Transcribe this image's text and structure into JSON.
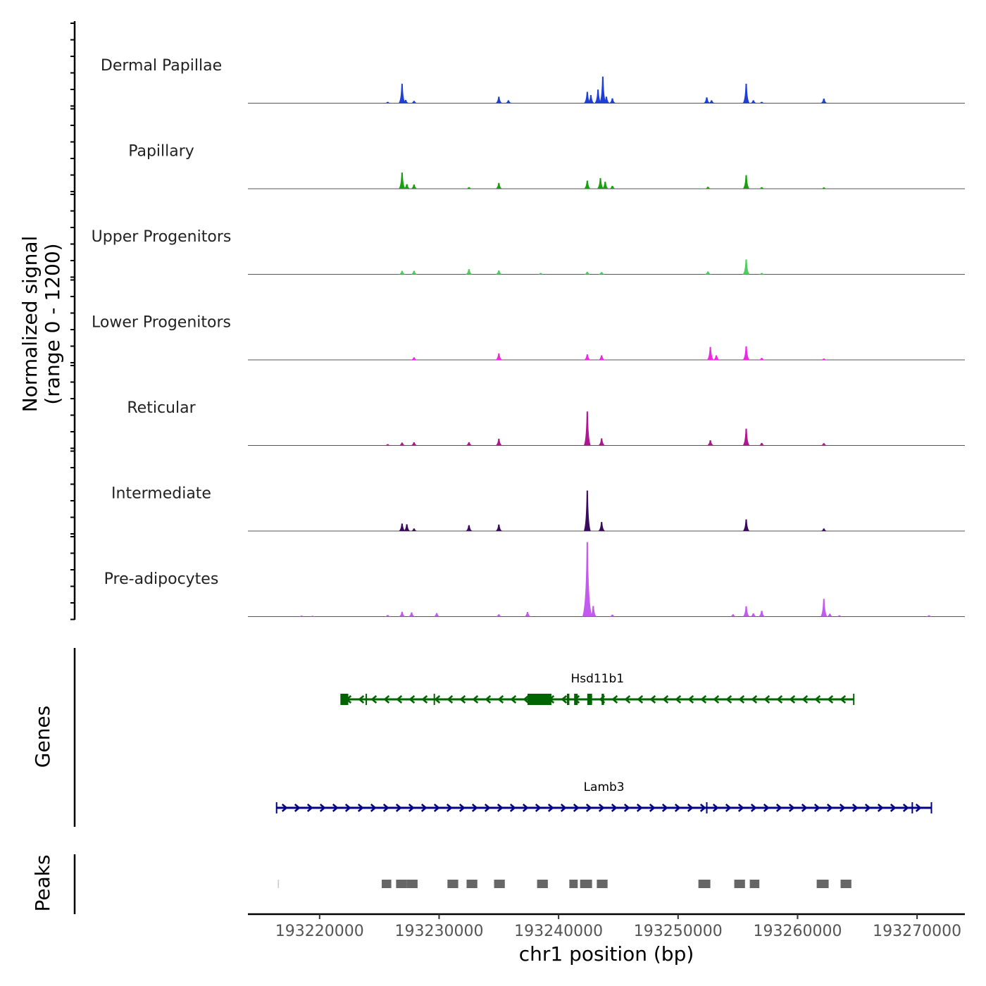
{
  "chart_data": {
    "type": "area",
    "title": "",
    "ylabel_line1": "Normalized signal",
    "ylabel_line2": "(range 0 - 1200)",
    "y_range": [
      0,
      1200
    ],
    "xlabel": "chr1 position (bp)",
    "xlim": [
      193214000,
      193274000
    ],
    "x_ticks": [
      193220000,
      193230000,
      193240000,
      193250000,
      193260000,
      193270000
    ],
    "x_tick_labels": [
      "193220000",
      "193230000",
      "193240000",
      "193250000",
      "193260000",
      "193270000"
    ],
    "tracks": [
      {
        "name": "Dermal Papillae",
        "color": "#1f3fd6",
        "peaks": [
          [
            193225700,
            40
          ],
          [
            193226900,
            600
          ],
          [
            193227200,
            100
          ],
          [
            193227900,
            70
          ],
          [
            193235000,
            200
          ],
          [
            193235800,
            90
          ],
          [
            193242400,
            350
          ],
          [
            193242700,
            250
          ],
          [
            193243300,
            420
          ],
          [
            193243700,
            820
          ],
          [
            193244000,
            200
          ],
          [
            193244500,
            150
          ],
          [
            193252400,
            180
          ],
          [
            193252800,
            90
          ],
          [
            193255700,
            600
          ],
          [
            193256300,
            90
          ],
          [
            193257000,
            40
          ],
          [
            193262200,
            140
          ]
        ]
      },
      {
        "name": "Papillary",
        "color": "#18a00f",
        "peaks": [
          [
            193226900,
            500
          ],
          [
            193227300,
            140
          ],
          [
            193227900,
            130
          ],
          [
            193232500,
            50
          ],
          [
            193235000,
            180
          ],
          [
            193242400,
            250
          ],
          [
            193243500,
            330
          ],
          [
            193243900,
            220
          ],
          [
            193244500,
            90
          ],
          [
            193252500,
            60
          ],
          [
            193255700,
            420
          ],
          [
            193257000,
            50
          ],
          [
            193262200,
            40
          ]
        ]
      },
      {
        "name": "Upper Progenitors",
        "color": "#4ccf5c",
        "peaks": [
          [
            193226900,
            110
          ],
          [
            193227900,
            110
          ],
          [
            193232500,
            160
          ],
          [
            193235000,
            120
          ],
          [
            193238500,
            40
          ],
          [
            193242400,
            80
          ],
          [
            193243600,
            70
          ],
          [
            193252500,
            90
          ],
          [
            193255700,
            460
          ],
          [
            193257000,
            40
          ]
        ]
      },
      {
        "name": "Lower Progenitors",
        "color": "#ee28e4",
        "peaks": [
          [
            193227900,
            80
          ],
          [
            193235000,
            200
          ],
          [
            193242400,
            170
          ],
          [
            193243600,
            140
          ],
          [
            193252700,
            400
          ],
          [
            193253200,
            140
          ],
          [
            193255700,
            420
          ],
          [
            193257000,
            60
          ],
          [
            193262200,
            40
          ]
        ]
      },
      {
        "name": "Reticular",
        "color": "#b21590",
        "peaks": [
          [
            193225700,
            40
          ],
          [
            193226900,
            90
          ],
          [
            193227900,
            100
          ],
          [
            193232500,
            100
          ],
          [
            193235000,
            210
          ],
          [
            193242400,
            1050
          ],
          [
            193243600,
            220
          ],
          [
            193252700,
            160
          ],
          [
            193255700,
            520
          ],
          [
            193257000,
            80
          ],
          [
            193262200,
            70
          ]
        ]
      },
      {
        "name": "Intermediate",
        "color": "#3a0a5c",
        "peaks": [
          [
            193226900,
            230
          ],
          [
            193227300,
            210
          ],
          [
            193227900,
            80
          ],
          [
            193232500,
            180
          ],
          [
            193235000,
            200
          ],
          [
            193242400,
            1250
          ],
          [
            193243600,
            280
          ],
          [
            193255700,
            360
          ],
          [
            193262200,
            80
          ]
        ]
      },
      {
        "name": "Pre-adipocytes",
        "color": "#c25af0",
        "peaks": [
          [
            193218500,
            30
          ],
          [
            193219400,
            25
          ],
          [
            193225700,
            50
          ],
          [
            193226900,
            150
          ],
          [
            193227700,
            130
          ],
          [
            193229800,
            110
          ],
          [
            193235000,
            70
          ],
          [
            193237400,
            140
          ],
          [
            193242400,
            2300
          ],
          [
            193242900,
            330
          ],
          [
            193244500,
            60
          ],
          [
            193254600,
            70
          ],
          [
            193255700,
            320
          ],
          [
            193256300,
            100
          ],
          [
            193257000,
            180
          ],
          [
            193262200,
            550
          ],
          [
            193262700,
            90
          ],
          [
            193263500,
            40
          ],
          [
            193271000,
            40
          ]
        ]
      }
    ],
    "genes_label": "Genes",
    "genes": [
      {
        "name": "Hsd11b1",
        "strand": "-",
        "start": 193221800,
        "end": 193264700,
        "color": "#006400",
        "exons": [
          [
            193221800,
            193222400
          ],
          [
            193237400,
            193239400
          ],
          [
            193240700,
            193240900
          ],
          [
            193241300,
            193241600
          ],
          [
            193242400,
            193242800
          ],
          [
            193243600,
            193243800
          ]
        ],
        "marks": [
          193223900,
          193229600
        ]
      },
      {
        "name": "Lamb3",
        "strand": "+",
        "start": 193216400,
        "end": 193271200,
        "color": "#00008b",
        "exons": [],
        "marks": [
          193252400,
          193269600
        ]
      }
    ],
    "peaks_label": "Peaks",
    "peak_regions": [
      [
        193216500,
        193216600
      ],
      [
        193225200,
        193226000
      ],
      [
        193226400,
        193227300
      ],
      [
        193227300,
        193228200
      ],
      [
        193230700,
        193231600
      ],
      [
        193232300,
        193233200
      ],
      [
        193234600,
        193235500
      ],
      [
        193238200,
        193239100
      ],
      [
        193240900,
        193241600
      ],
      [
        193241800,
        193242800
      ],
      [
        193243200,
        193244100
      ],
      [
        193251700,
        193252700
      ],
      [
        193254700,
        193255600
      ],
      [
        193256000,
        193256800
      ],
      [
        193261600,
        193262600
      ],
      [
        193263600,
        193264500
      ]
    ]
  }
}
